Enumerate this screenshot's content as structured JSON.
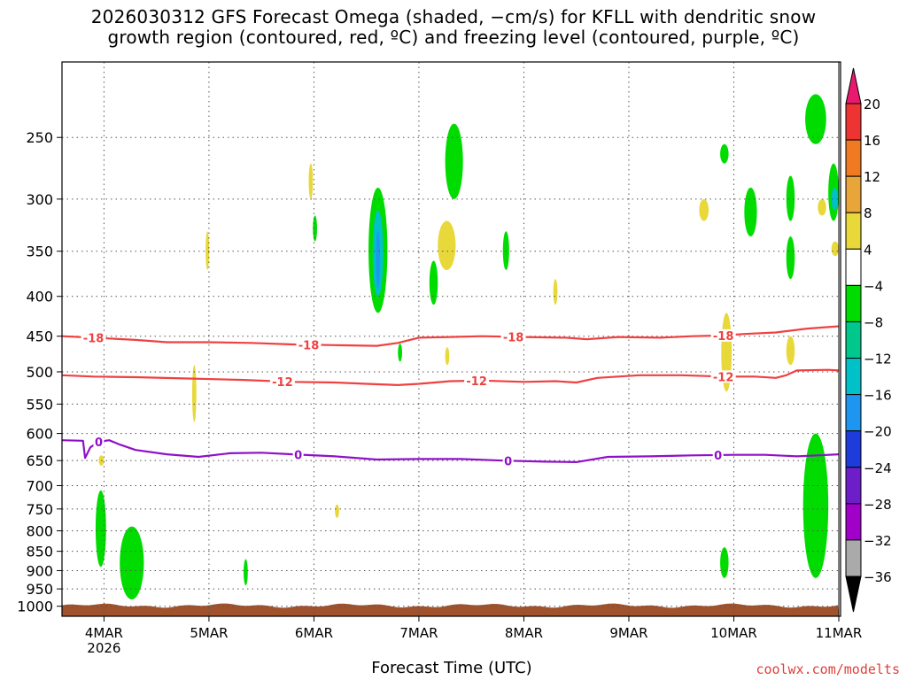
{
  "chart_data": {
    "type": "heatmap",
    "title": "2026030312 GFS Forecast Omega (shaded, −cm/s) for KFLL with dendritic snow growth region (contoured, red, ºC) and freezing level (contoured, purple, ºC)",
    "title_lines": [
      "2026030312 GFS Forecast Omega (shaded, −cm/s) for KFLL with dendritic snow",
      "growth region (contoured, red, ºC) and freezing level (contoured, purple, ºC)"
    ],
    "xlabel": "Forecast Time (UTC)",
    "ylabel": "",
    "credit": "coolwx.com/modelts",
    "x_axis": {
      "start_day": 3.6,
      "end_day": 11.0,
      "ticks": [
        {
          "day": 4,
          "label": "4MAR",
          "sublabel": "2026"
        },
        {
          "day": 5,
          "label": "5MAR"
        },
        {
          "day": 6,
          "label": "6MAR"
        },
        {
          "day": 7,
          "label": "7MAR"
        },
        {
          "day": 8,
          "label": "8MAR"
        },
        {
          "day": 9,
          "label": "9MAR"
        },
        {
          "day": 10,
          "label": "10MAR"
        },
        {
          "day": 11,
          "label": "11MAR"
        }
      ]
    },
    "y_axis": {
      "scale": "log-pressure",
      "top": 200,
      "bottom": 1030,
      "units": "hPa",
      "ticks": [
        250,
        300,
        350,
        400,
        450,
        500,
        550,
        600,
        650,
        700,
        750,
        800,
        850,
        900,
        950,
        1000
      ]
    },
    "grid": true,
    "colorbar": {
      "levels": [
        "20",
        "16",
        "12",
        "8",
        "4",
        "−4",
        "−8",
        "−12",
        "−16",
        "−20",
        "−24",
        "−28",
        "−32",
        "−36"
      ],
      "colors": [
        "#e8196e",
        "#ee3333",
        "#f07a22",
        "#e8a53a",
        "#e8d83a",
        "#ffffff",
        "#00dc00",
        "#00c88c",
        "#00c0c8",
        "#1e96f0",
        "#1e3cdc",
        "#6e1ec8",
        "#a000c8",
        "#aaaaaa",
        "#000000"
      ]
    },
    "contours": [
      {
        "name": "-18",
        "color": "#f04040",
        "label": "-18",
        "points": [
          [
            3.6,
            450
          ],
          [
            3.9,
            452
          ],
          [
            4.3,
            455
          ],
          [
            4.6,
            458
          ],
          [
            5.0,
            458
          ],
          [
            5.4,
            459
          ],
          [
            5.8,
            461
          ],
          [
            6.2,
            462
          ],
          [
            6.6,
            463
          ],
          [
            6.8,
            459
          ],
          [
            7.0,
            452
          ],
          [
            7.3,
            451
          ],
          [
            7.6,
            450
          ],
          [
            8.0,
            451
          ],
          [
            8.4,
            452
          ],
          [
            8.6,
            454
          ],
          [
            8.9,
            451
          ],
          [
            9.3,
            452
          ],
          [
            9.6,
            450
          ],
          [
            9.9,
            449
          ],
          [
            10.1,
            447
          ],
          [
            10.4,
            445
          ],
          [
            10.7,
            440
          ],
          [
            11.0,
            437
          ]
        ],
        "label_days": [
          3.9,
          5.95,
          7.9,
          9.9
        ]
      },
      {
        "name": "-12",
        "color": "#f04040",
        "label": "-12",
        "points": [
          [
            3.6,
            505
          ],
          [
            3.9,
            507
          ],
          [
            4.3,
            508
          ],
          [
            4.8,
            510
          ],
          [
            5.3,
            512
          ],
          [
            5.8,
            515
          ],
          [
            6.2,
            516
          ],
          [
            6.5,
            518
          ],
          [
            6.8,
            520
          ],
          [
            7.0,
            518
          ],
          [
            7.3,
            514
          ],
          [
            7.6,
            513
          ],
          [
            8.0,
            515
          ],
          [
            8.3,
            514
          ],
          [
            8.5,
            516
          ],
          [
            8.7,
            509
          ],
          [
            9.1,
            505
          ],
          [
            9.5,
            505
          ],
          [
            9.9,
            507
          ],
          [
            10.2,
            507
          ],
          [
            10.4,
            509
          ],
          [
            10.5,
            505
          ],
          [
            10.6,
            498
          ],
          [
            10.9,
            497
          ],
          [
            11.0,
            498
          ]
        ],
        "label_days": [
          5.7,
          7.55,
          9.9
        ]
      },
      {
        "name": "0",
        "color": "#9010c8",
        "label": "0",
        "points": [
          [
            3.6,
            612
          ],
          [
            3.8,
            613
          ],
          [
            3.82,
            645
          ],
          [
            3.87,
            625
          ],
          [
            3.95,
            615
          ],
          [
            4.05,
            612
          ],
          [
            4.15,
            620
          ],
          [
            4.3,
            630
          ],
          [
            4.6,
            638
          ],
          [
            4.9,
            643
          ],
          [
            5.2,
            636
          ],
          [
            5.5,
            635
          ],
          [
            5.8,
            638
          ],
          [
            6.2,
            642
          ],
          [
            6.6,
            648
          ],
          [
            7.0,
            647
          ],
          [
            7.4,
            647
          ],
          [
            7.8,
            650
          ],
          [
            8.2,
            652
          ],
          [
            8.5,
            653
          ],
          [
            8.8,
            643
          ],
          [
            9.2,
            642
          ],
          [
            9.6,
            640
          ],
          [
            10.0,
            639
          ],
          [
            10.3,
            639
          ],
          [
            10.6,
            642
          ],
          [
            10.8,
            640
          ],
          [
            11.0,
            638
          ]
        ],
        "label_days": [
          3.95,
          5.85,
          7.85,
          9.85
        ]
      }
    ],
    "shaded_regions": [
      {
        "color": "#00dc00",
        "x": [
          3.92,
          4.02
        ],
        "p": [
          710,
          890
        ]
      },
      {
        "color": "#00dc00",
        "x": [
          4.15,
          4.38
        ],
        "p": [
          790,
          980
        ]
      },
      {
        "color": "#00dc00",
        "x": [
          5.33,
          5.37
        ],
        "p": [
          870,
          940
        ]
      },
      {
        "color": "#e8d83a",
        "x": [
          3.95,
          4.0
        ],
        "p": [
          640,
          660
        ]
      },
      {
        "color": "#e8d83a",
        "x": [
          4.84,
          4.88
        ],
        "p": [
          490,
          580
        ]
      },
      {
        "color": "#e8d83a",
        "x": [
          4.97,
          5.0
        ],
        "p": [
          330,
          370
        ]
      },
      {
        "color": "#e8d83a",
        "x": [
          5.95,
          5.99
        ],
        "p": [
          270,
          300
        ]
      },
      {
        "color": "#00dc00",
        "x": [
          5.99,
          6.03
        ],
        "p": [
          315,
          340
        ]
      },
      {
        "color": "#e8d83a",
        "x": [
          6.2,
          6.24
        ],
        "p": [
          740,
          770
        ]
      },
      {
        "color": "#00dc00",
        "x": [
          6.52,
          6.7
        ],
        "p": [
          290,
          420
        ]
      },
      {
        "color": "#00c0c8",
        "x": [
          6.56,
          6.66
        ],
        "p": [
          310,
          400
        ]
      },
      {
        "color": "#1e96f0",
        "x": [
          6.59,
          6.63
        ],
        "p": [
          330,
          390
        ]
      },
      {
        "color": "#00dc00",
        "x": [
          6.8,
          6.84
        ],
        "p": [
          460,
          485
        ]
      },
      {
        "color": "#00dc00",
        "x": [
          7.1,
          7.18
        ],
        "p": [
          360,
          410
        ]
      },
      {
        "color": "#e8d83a",
        "x": [
          7.18,
          7.35
        ],
        "p": [
          320,
          370
        ]
      },
      {
        "color": "#00dc00",
        "x": [
          7.25,
          7.42
        ],
        "p": [
          240,
          300
        ]
      },
      {
        "color": "#e8d83a",
        "x": [
          7.25,
          7.29
        ],
        "p": [
          465,
          490
        ]
      },
      {
        "color": "#00dc00",
        "x": [
          7.8,
          7.86
        ],
        "p": [
          330,
          370
        ]
      },
      {
        "color": "#e8d83a",
        "x": [
          8.28,
          8.32
        ],
        "p": [
          380,
          410
        ]
      },
      {
        "color": "#e8d83a",
        "x": [
          9.67,
          9.76
        ],
        "p": [
          300,
          320
        ]
      },
      {
        "color": "#00dc00",
        "x": [
          9.87,
          9.95
        ],
        "p": [
          255,
          270
        ]
      },
      {
        "color": "#00dc00",
        "x": [
          10.1,
          10.22
        ],
        "p": [
          290,
          335
        ]
      },
      {
        "color": "#e8d83a",
        "x": [
          9.88,
          9.98
        ],
        "p": [
          420,
          530
        ]
      },
      {
        "color": "#00dc00",
        "x": [
          9.87,
          9.95
        ],
        "p": [
          840,
          920
        ]
      },
      {
        "color": "#00dc00",
        "x": [
          10.5,
          10.58
        ],
        "p": [
          280,
          320
        ]
      },
      {
        "color": "#00dc00",
        "x": [
          10.5,
          10.58
        ],
        "p": [
          335,
          380
        ]
      },
      {
        "color": "#e8d83a",
        "x": [
          10.5,
          10.58
        ],
        "p": [
          450,
          490
        ]
      },
      {
        "color": "#00dc00",
        "x": [
          10.68,
          10.88
        ],
        "p": [
          220,
          255
        ]
      },
      {
        "color": "#00dc00",
        "x": [
          10.66,
          10.9
        ],
        "p": [
          600,
          920
        ]
      },
      {
        "color": "#e8d83a",
        "x": [
          10.8,
          10.88
        ],
        "p": [
          300,
          315
        ]
      },
      {
        "color": "#00dc00",
        "x": [
          10.9,
          11.0
        ],
        "p": [
          270,
          320
        ]
      },
      {
        "color": "#00c0c8",
        "x": [
          10.93,
          10.99
        ],
        "p": [
          290,
          310
        ]
      },
      {
        "color": "#e8d83a",
        "x": [
          10.93,
          11.0
        ],
        "p": [
          340,
          355
        ]
      }
    ],
    "terrain_color": "#a0522d"
  }
}
